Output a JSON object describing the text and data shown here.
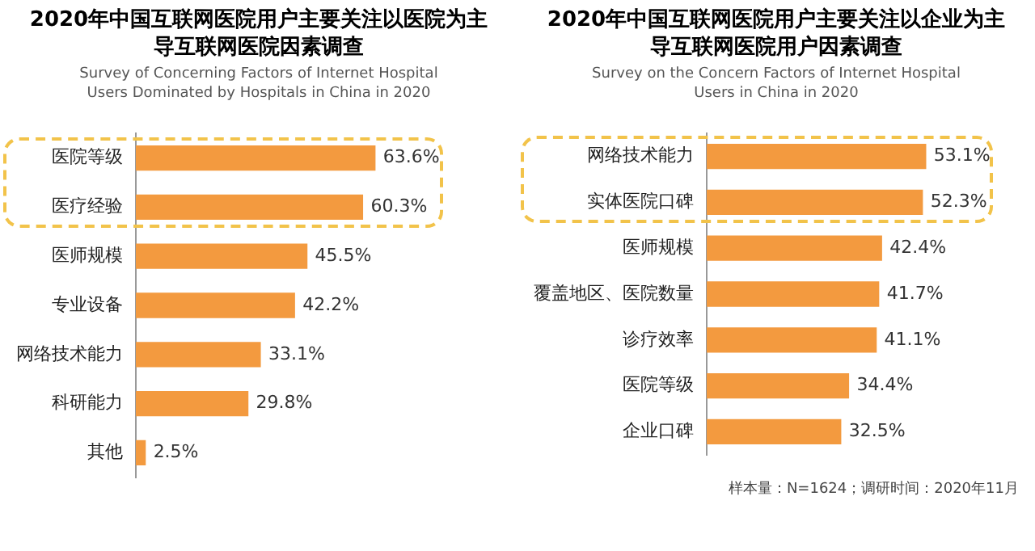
{
  "chart_data": [
    {
      "type": "bar",
      "orientation": "horizontal",
      "title": "2020年中国互联网医院用户主要关注以医院为主导互联网医院因素调查",
      "subtitle": "Survey of Concerning Factors of Internet Hospital Users Dominated by Hospitals in China in 2020",
      "categories": [
        "医院等级",
        "医疗经验",
        "医师规模",
        "专业设备",
        "网络技术能力",
        "科研能力",
        "其他"
      ],
      "values": [
        63.6,
        60.3,
        45.5,
        42.2,
        33.1,
        29.8,
        2.5
      ],
      "value_labels": [
        "63.6%",
        "60.3%",
        "45.5%",
        "42.2%",
        "33.1%",
        "29.8%",
        "2.5%"
      ],
      "color": "#f39a3f",
      "grid": false,
      "legend": false,
      "tick_labels": "y"
    },
    {
      "type": "bar",
      "orientation": "horizontal",
      "title": "2020年中国互联网医院用户主要关注以企业为主导互联网医院用户因素调查",
      "subtitle": "Survey on the Concern Factors of Internet Hospital Users in China in 2020",
      "categories": [
        "网络技术能力",
        "实体医院口碑",
        "医师规模",
        "覆盖地区、医院数量",
        "诊疗效率",
        "医院等级",
        "企业口碑"
      ],
      "values": [
        53.1,
        52.3,
        42.4,
        41.7,
        41.1,
        34.4,
        32.5
      ],
      "value_labels": [
        "53.1%",
        "52.3%",
        "42.4%",
        "41.7%",
        "41.1%",
        "34.4%",
        "32.5%"
      ],
      "color": "#f39a3f",
      "grid": false,
      "legend": false,
      "tick_labels": "y",
      "annotations": [
        "样本量：N=1624；调研时间：2020年11月"
      ]
    }
  ]
}
